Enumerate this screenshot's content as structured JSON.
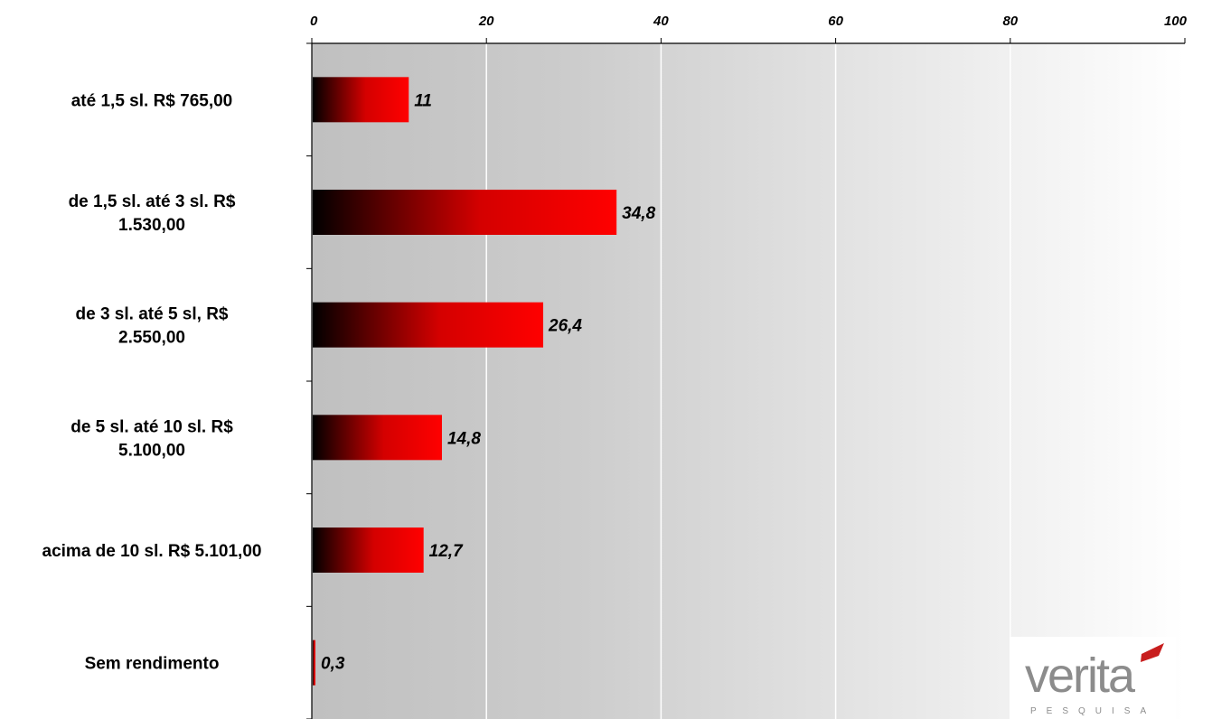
{
  "chart_data": {
    "type": "bar",
    "orientation": "horizontal",
    "categories": [
      "até 1,5 sl. R$ 765,00",
      "de 1,5 sl. até 3 sl. R$ 1.530,00",
      "de 3 sl. até 5 sl, R$ 2.550,00",
      "de 5 sl. até 10 sl. R$ 5.100,00",
      "acima de 10 sl. R$ 5.101,00",
      "Sem rendimento"
    ],
    "category_lines": [
      [
        "até 1,5 sl. R$ 765,00"
      ],
      [
        "de 1,5 sl. até 3 sl. R$",
        "1.530,00"
      ],
      [
        "de 3 sl. até 5 sl, R$",
        "2.550,00"
      ],
      [
        "de 5 sl. até 10 sl. R$",
        "5.100,00"
      ],
      [
        "acima de 10 sl. R$ 5.101,00"
      ],
      [
        "Sem rendimento"
      ]
    ],
    "values": [
      11,
      34.8,
      26.4,
      14.8,
      12.7,
      0.3
    ],
    "value_labels": [
      "11",
      "34,8",
      "26,4",
      "14,8",
      "12,7",
      "0,3"
    ],
    "xlim": [
      0,
      100
    ],
    "xticks": [
      0,
      20,
      40,
      60,
      80,
      100
    ],
    "xtick_labels": [
      "0",
      "20",
      "40",
      "60",
      "80",
      "100"
    ],
    "x_axis_position": "top",
    "grid": true,
    "legend": "none",
    "colors": {
      "bar_start": "#000000",
      "bar_end": "#ff0000",
      "background_left": "#c0c0c0",
      "background_right": "#ffffff",
      "gridline": "#ffffff",
      "axis": "#000000"
    }
  },
  "logo": {
    "wordmark": "verita",
    "tagline": "PESQUISA",
    "accent_color": "#c81e1e",
    "text_color": "#8c8c8c"
  }
}
